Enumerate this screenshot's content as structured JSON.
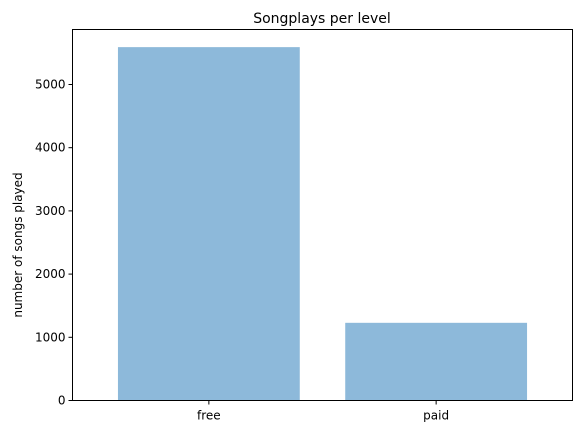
{
  "chart_data": {
    "type": "bar",
    "title": "Songplays per level",
    "xlabel": "",
    "ylabel": "number of songs played",
    "categories": [
      "free",
      "paid"
    ],
    "values": [
      5591,
      1229
    ],
    "ylim": [
      0,
      5870
    ],
    "yticks": [
      0,
      1000,
      2000,
      3000,
      4000,
      5000
    ],
    "grid": false,
    "legend": "none",
    "bar_color": "#8db9da"
  }
}
